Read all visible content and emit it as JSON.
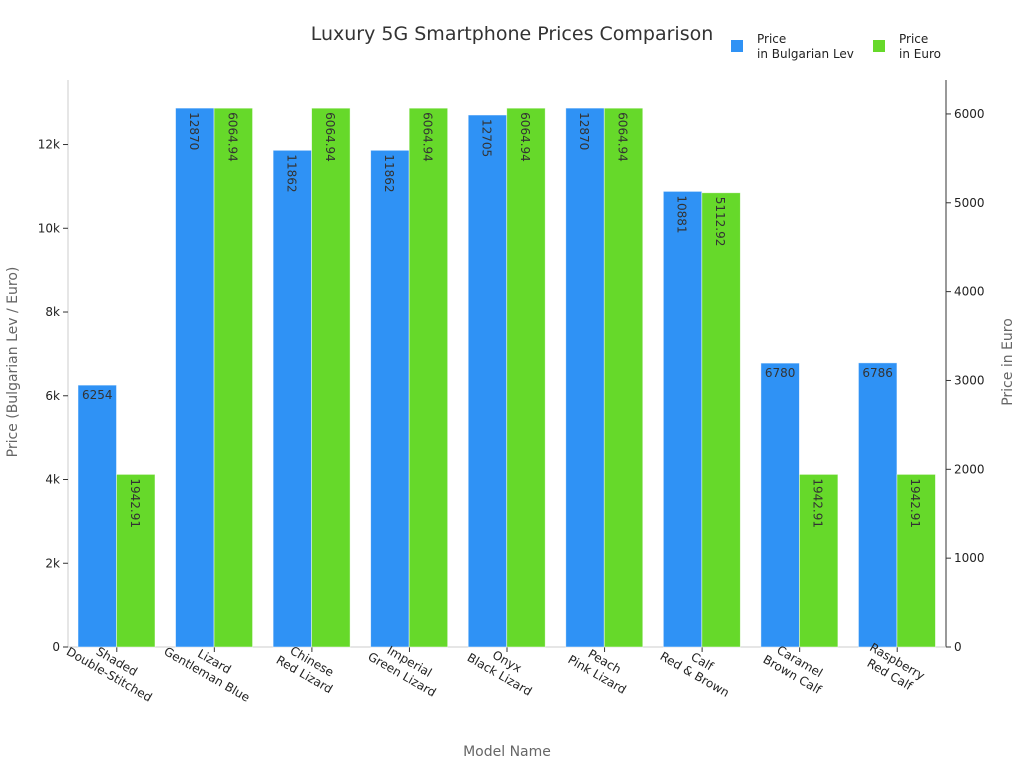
{
  "chart_data": {
    "type": "bar",
    "title": "Luxury 5G Smartphone Prices Comparison",
    "xlabel": "Model Name",
    "ylabel_left": "Price (Bulgarian Lev / Euro)",
    "ylabel_right": "Price in Euro",
    "categories": [
      [
        "Shaded",
        "Double-Stitched"
      ],
      [
        "Lizard",
        "Gentleman Blue"
      ],
      [
        "Chinese",
        "Red Lizard"
      ],
      [
        "Imperial",
        "Green Lizard"
      ],
      [
        "Onyx",
        "Black Lizard"
      ],
      [
        "Peach",
        "Pink Lizard"
      ],
      [
        "Calf",
        "Red & Brown"
      ],
      [
        "Caramel",
        "Brown Calf"
      ],
      [
        "Raspberry",
        "Red Calf"
      ]
    ],
    "series": [
      {
        "name": [
          "Price",
          "in Bulgarian Lev"
        ],
        "axis": "left",
        "color": "#2f92f5",
        "values": [
          6254,
          12870,
          11862,
          11862,
          12705,
          12870,
          10881,
          6780,
          6786
        ],
        "labels": [
          "6254",
          "12870",
          "11862",
          "11862",
          "12705",
          "12870",
          "10881",
          "6780",
          "6786"
        ]
      },
      {
        "name": [
          "Price",
          "in Euro"
        ],
        "axis": "right",
        "color": "#66d92a",
        "values": [
          1942.91,
          6064.94,
          6064.94,
          6064.94,
          6064.94,
          6064.94,
          5112.92,
          1942.91,
          1942.91
        ],
        "labels": [
          "1942.91",
          "6064.94",
          "6064.94",
          "6064.94",
          "6064.94",
          "6064.94",
          "5112.92",
          "1942.91",
          "1942.91"
        ]
      }
    ],
    "left_axis": {
      "ylim": [
        0,
        13541
      ],
      "ticks": [
        0,
        2000,
        4000,
        6000,
        8000,
        10000,
        12000
      ],
      "tick_labels": [
        "0",
        "2k",
        "4k",
        "6k",
        "8k",
        "10k",
        "12k"
      ]
    },
    "right_axis": {
      "ylim": [
        0,
        6382
      ],
      "ticks": [
        0,
        1000,
        2000,
        3000,
        4000,
        5000,
        6000
      ],
      "tick_labels": [
        "0",
        "1000",
        "2000",
        "3000",
        "4000",
        "5000",
        "6000"
      ]
    },
    "legend": "top-right",
    "grid": false
  }
}
